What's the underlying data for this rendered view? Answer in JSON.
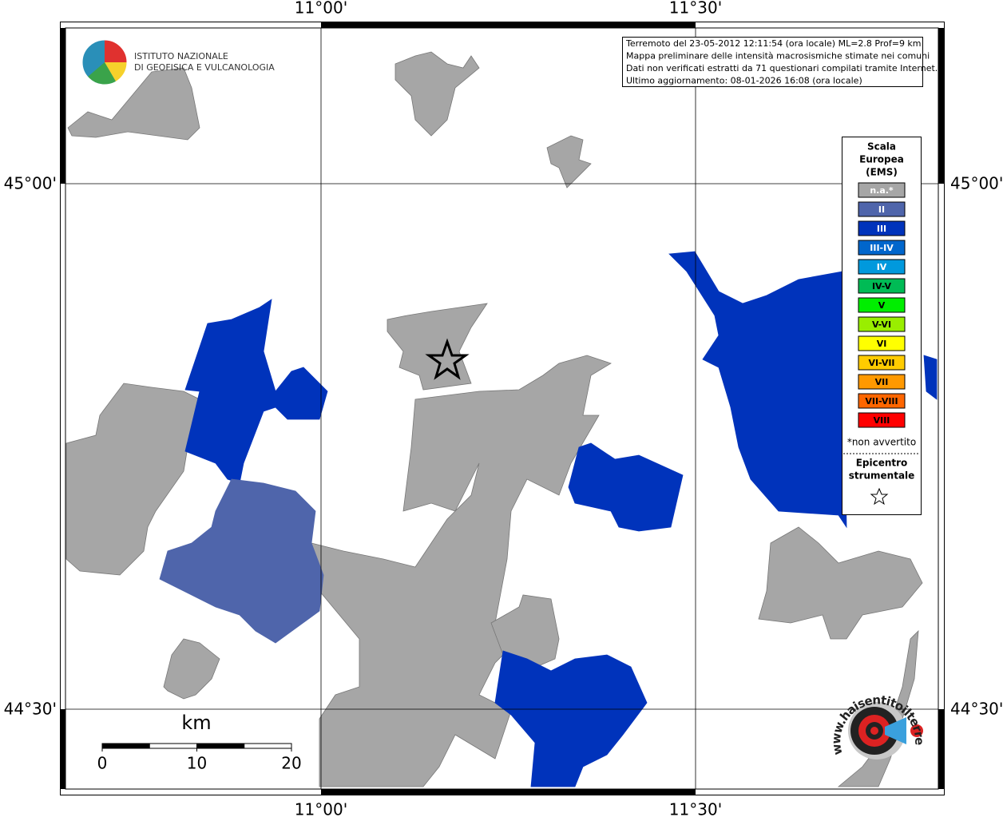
{
  "lon_labels": [
    "11°00'",
    "11°30'"
  ],
  "lat_labels": [
    "45°00'",
    "44°30'"
  ],
  "logo": {
    "line1": "ISTITUTO NAZIONALE",
    "line2": "DI GEOFISICA E VULCANOLOGIA"
  },
  "info": [
    "Terremoto del 23-05-2012 12:11:54 (ora locale) ML=2.8 Prof=9 km",
    "Mappa preliminare delle intensità macrosismiche stimate nei comuni",
    "Dati non verificati estratti da 71 questionari compilati tramite Internet.",
    "Ultimo aggiornamento: 08-01-2026 16:08 (ora locale)"
  ],
  "legend": {
    "title": [
      "Scala",
      "Europea",
      "(EMS)"
    ],
    "classes": [
      {
        "label": "n.a.*",
        "color": "#a6a6a6",
        "text": "#ffffff"
      },
      {
        "label": "II",
        "color": "#4f65ab",
        "text": "#ffffff"
      },
      {
        "label": "III",
        "color": "#0033bb",
        "text": "#ffffff"
      },
      {
        "label": "III-IV",
        "color": "#0066cc",
        "text": "#ffffff"
      },
      {
        "label": "IV",
        "color": "#0099dd",
        "text": "#ffffff"
      },
      {
        "label": "IV-V",
        "color": "#00bb55",
        "text": "#000000"
      },
      {
        "label": "V",
        "color": "#00ee00",
        "text": "#000000"
      },
      {
        "label": "V-VI",
        "color": "#99ee00",
        "text": "#000000"
      },
      {
        "label": "VI",
        "color": "#ffff00",
        "text": "#000000"
      },
      {
        "label": "VI-VII",
        "color": "#ffcc00",
        "text": "#000000"
      },
      {
        "label": "VII",
        "color": "#ff9900",
        "text": "#000000"
      },
      {
        "label": "VII-VIII",
        "color": "#ff6600",
        "text": "#000000"
      },
      {
        "label": "VIII",
        "color": "#ff0000",
        "text": "#000000"
      }
    ],
    "note": "*non avvertito",
    "epicentre": [
      "Epicentro",
      "strumentale"
    ]
  },
  "scale": {
    "unit": "km",
    "ticks": [
      0,
      10,
      20
    ],
    "max": 20
  },
  "site": "www.haisentitoilterremoto.it"
}
